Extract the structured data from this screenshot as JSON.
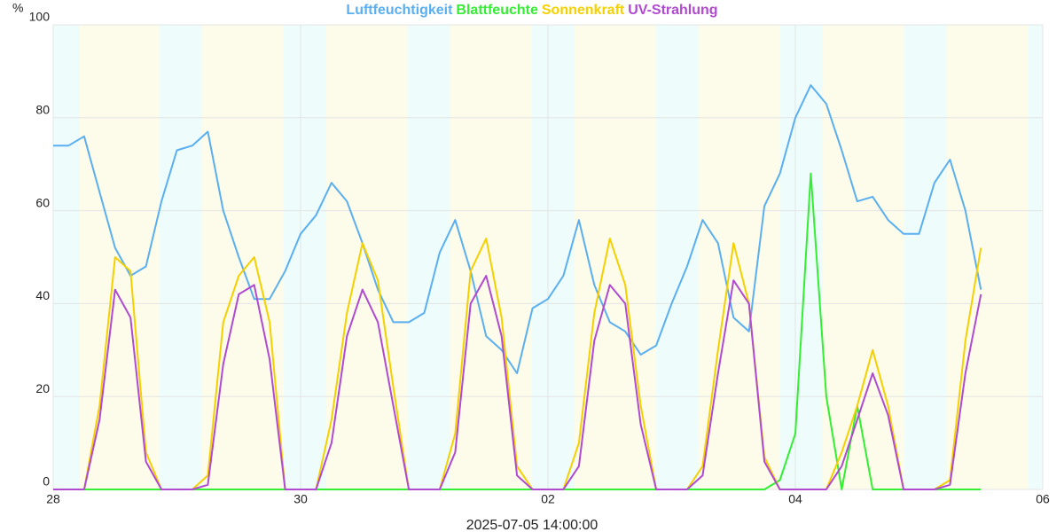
{
  "chart_data": {
    "type": "line",
    "y_label": "%",
    "x_label": "2025-07-05 14:00:00",
    "x": [
      0,
      3,
      6,
      9,
      12,
      15,
      18,
      21,
      24,
      27,
      30,
      33,
      36,
      39,
      42,
      45,
      48,
      51,
      54,
      57,
      60,
      63,
      66,
      69,
      72,
      75,
      78,
      81,
      84,
      87,
      90,
      93,
      96,
      99,
      102,
      105,
      108,
      111,
      114,
      117,
      120,
      123,
      126,
      129,
      132,
      135,
      138,
      141,
      144,
      147,
      150,
      153,
      156,
      159,
      162,
      165,
      168,
      171,
      174,
      177,
      180
    ],
    "xlim": [
      0,
      192
    ],
    "xticks": [
      {
        "value": 0,
        "label": "28"
      },
      {
        "value": 48,
        "label": "30"
      },
      {
        "value": 96,
        "label": "02"
      },
      {
        "value": 144,
        "label": "04"
      },
      {
        "value": 192,
        "label": "06"
      }
    ],
    "ylim": [
      0,
      100
    ],
    "yticks": [
      0,
      20,
      40,
      60,
      80,
      100
    ],
    "grid": true,
    "series": [
      {
        "name": "Luftfeuchtigkeit",
        "color": "#5aaff0",
        "values": [
          74,
          74,
          76,
          64,
          52,
          46,
          48,
          62,
          73,
          74,
          77,
          60,
          50,
          41,
          41,
          47,
          55,
          59,
          66,
          62,
          53,
          43,
          36,
          36,
          38,
          51,
          58,
          47,
          33,
          30,
          25,
          39,
          41,
          46,
          58,
          44,
          36,
          34,
          29,
          31,
          40,
          48,
          58,
          53,
          37,
          34,
          61,
          68,
          80,
          87,
          83,
          73,
          62,
          63,
          58,
          55,
          55,
          66,
          71,
          60,
          43
        ]
      },
      {
        "name": "Blattfeuchte",
        "color": "#33ee33",
        "values": [
          0,
          0,
          0,
          0,
          0,
          0,
          0,
          0,
          0,
          0,
          0,
          0,
          0,
          0,
          0,
          0,
          0,
          0,
          0,
          0,
          0,
          0,
          0,
          0,
          0,
          0,
          0,
          0,
          0,
          0,
          0,
          0,
          0,
          0,
          0,
          0,
          0,
          0,
          0,
          0,
          0,
          0,
          0,
          0,
          0,
          0,
          0,
          2,
          12,
          68,
          20,
          0,
          18,
          0,
          0,
          0,
          0,
          0,
          0,
          0,
          0
        ]
      },
      {
        "name": "Sonnenkraft",
        "color": "#f5d000",
        "values": [
          0,
          0,
          0,
          18,
          50,
          47,
          8,
          0,
          0,
          0,
          3,
          36,
          46,
          50,
          36,
          0,
          0,
          0,
          15,
          38,
          53,
          45,
          22,
          0,
          0,
          0,
          12,
          47,
          54,
          37,
          5,
          0,
          0,
          0,
          10,
          38,
          54,
          44,
          18,
          0,
          0,
          0,
          5,
          30,
          53,
          40,
          7,
          0,
          0,
          0,
          0,
          8,
          18,
          30,
          18,
          0,
          0,
          0,
          2,
          32,
          52
        ]
      },
      {
        "name": "UV-Strahlung",
        "color": "#b04ad0",
        "values": [
          0,
          0,
          0,
          15,
          43,
          37,
          6,
          0,
          0,
          0,
          1,
          27,
          42,
          44,
          28,
          0,
          0,
          0,
          10,
          33,
          43,
          36,
          18,
          0,
          0,
          0,
          8,
          40,
          46,
          33,
          3,
          0,
          0,
          0,
          5,
          32,
          44,
          40,
          14,
          0,
          0,
          0,
          3,
          25,
          45,
          40,
          6,
          0,
          0,
          0,
          0,
          5,
          15,
          25,
          16,
          0,
          0,
          0,
          1,
          25,
          42
        ]
      }
    ]
  }
}
